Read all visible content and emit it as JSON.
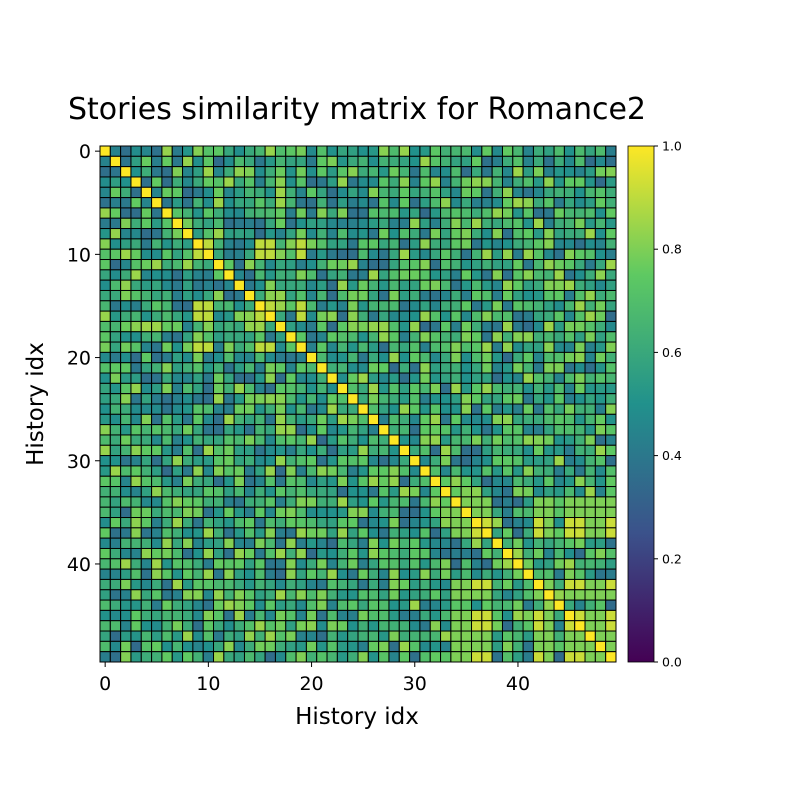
{
  "chart_data": {
    "type": "heatmap",
    "title": "Stories similarity matrix for Romance2",
    "xlabel": "History idx",
    "ylabel": "History idx",
    "n": 50,
    "xticks": [
      0,
      10,
      20,
      30,
      40
    ],
    "yticks": [
      0,
      10,
      20,
      30,
      40
    ],
    "colorbar": {
      "min": 0.0,
      "max": 1.0,
      "ticks": [
        "0.0",
        "0.2",
        "0.4",
        "0.6",
        "0.8",
        "1.0"
      ],
      "colormap": "viridis"
    },
    "diagonal_value": 1.0,
    "value_range_off_diagonal": [
      0.35,
      0.85
    ],
    "cluster_a": {
      "indices": [
        9,
        10,
        15,
        16,
        19
      ],
      "value": 0.9
    },
    "cluster_b": {
      "indices": [
        36,
        37,
        42,
        45,
        46,
        49
      ],
      "value": 0.92
    },
    "cluster_b_neighbors": {
      "indices": [
        34,
        35,
        43,
        47,
        48
      ],
      "value": 0.8
    },
    "grid": "cell-borders",
    "cell_border_color": "#000000"
  },
  "colors": {
    "viridis_0": "#440154",
    "viridis_25": "#3b528b",
    "viridis_50": "#21918c",
    "viridis_75": "#5ec962",
    "viridis_100": "#fde725"
  }
}
